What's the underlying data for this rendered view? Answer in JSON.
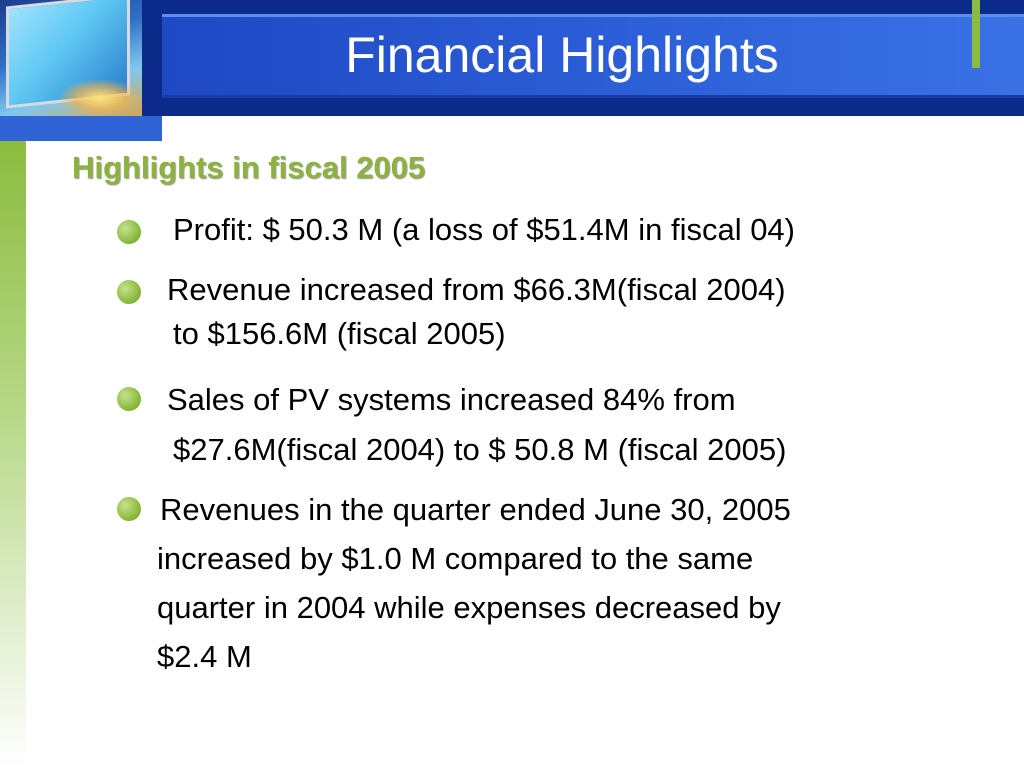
{
  "slide": {
    "title": "Financial Highlights",
    "subtitle": "Highlights in fiscal 2005",
    "bullets": [
      {
        "text": "Profit: $ 50.3 M (a loss of $51.4M in fiscal 04)"
      },
      {
        "text": "Revenue increased from $66.3M(fiscal 2004)\nto $156.6M (fiscal 2005)"
      },
      {
        "text": "Sales of PV systems increased 84% from\n$27.6M(fiscal 2004) to $ 50.8 M (fiscal 2005)"
      },
      {
        "text": "Revenues in the quarter ended June 30, 2005\nincreased by $1.0 M compared to the same\nquarter in 2004 while expenses decreased by\n$2.4 M"
      }
    ]
  },
  "colors": {
    "header_dark": "#0c2a8a",
    "header_blue": "#2c5fd8",
    "accent_green": "#8cbc3f",
    "subtitle_green": "#8db33f",
    "text": "#000000"
  }
}
